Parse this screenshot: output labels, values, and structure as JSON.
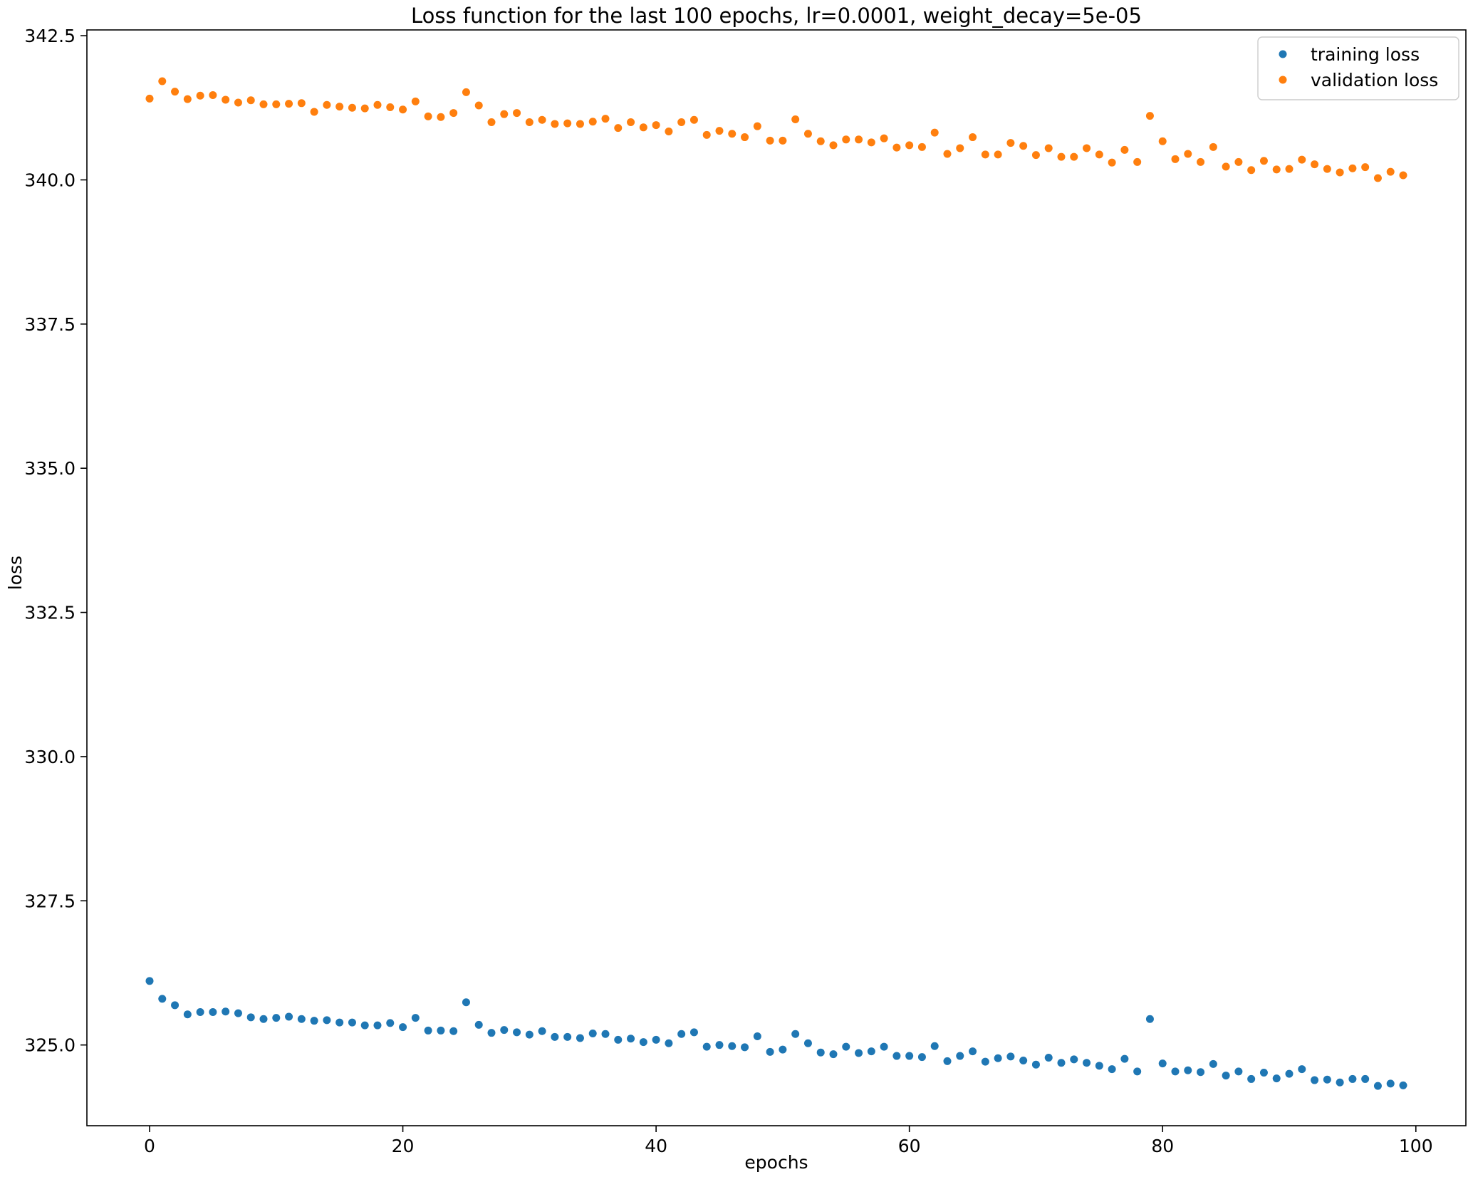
{
  "chart_data": {
    "type": "scatter",
    "title": "Loss function for the last 100 epochs, lr=0.0001, weight_decay=5e-05",
    "xlabel": "epochs",
    "ylabel": "loss",
    "xlim": [
      -4.95,
      103.95
    ],
    "ylim": [
      323.6,
      342.6
    ],
    "xticks": [
      0,
      20,
      40,
      60,
      80,
      100
    ],
    "xtick_labels": [
      "0",
      "20",
      "40",
      "60",
      "80",
      "100"
    ],
    "yticks": [
      325.0,
      327.5,
      330.0,
      332.5,
      335.0,
      337.5,
      340.0,
      342.5
    ],
    "ytick_labels": [
      "325.0",
      "327.5",
      "330.0",
      "332.5",
      "335.0",
      "337.5",
      "340.0",
      "342.5"
    ],
    "grid": false,
    "legend_position": "upper right",
    "x": [
      0,
      1,
      2,
      3,
      4,
      5,
      6,
      7,
      8,
      9,
      10,
      11,
      12,
      13,
      14,
      15,
      16,
      17,
      18,
      19,
      20,
      21,
      22,
      23,
      24,
      25,
      26,
      27,
      28,
      29,
      30,
      31,
      32,
      33,
      34,
      35,
      36,
      37,
      38,
      39,
      40,
      41,
      42,
      43,
      44,
      45,
      46,
      47,
      48,
      49,
      50,
      51,
      52,
      53,
      54,
      55,
      56,
      57,
      58,
      59,
      60,
      61,
      62,
      63,
      64,
      65,
      66,
      67,
      68,
      69,
      70,
      71,
      72,
      73,
      74,
      75,
      76,
      77,
      78,
      79,
      80,
      81,
      82,
      83,
      84,
      85,
      86,
      87,
      88,
      89,
      90,
      91,
      92,
      93,
      94,
      95,
      96,
      97,
      98,
      99
    ],
    "series": [
      {
        "name": "training loss",
        "color": "#1f77b4",
        "values": [
          326.11,
          325.8,
          325.69,
          325.53,
          325.57,
          325.57,
          325.58,
          325.55,
          325.48,
          325.45,
          325.47,
          325.49,
          325.45,
          325.42,
          325.43,
          325.39,
          325.39,
          325.34,
          325.34,
          325.38,
          325.31,
          325.47,
          325.25,
          325.25,
          325.24,
          325.74,
          325.35,
          325.21,
          325.26,
          325.22,
          325.18,
          325.24,
          325.14,
          325.14,
          325.12,
          325.2,
          325.19,
          325.09,
          325.11,
          325.05,
          325.09,
          325.03,
          325.19,
          325.22,
          324.97,
          325.0,
          324.98,
          324.96,
          325.15,
          324.88,
          324.92,
          325.19,
          325.03,
          324.87,
          324.84,
          324.97,
          324.86,
          324.89,
          324.97,
          324.81,
          324.81,
          324.79,
          324.98,
          324.72,
          324.81,
          324.89,
          324.71,
          324.77,
          324.8,
          324.73,
          324.66,
          324.78,
          324.69,
          324.75,
          324.69,
          324.64,
          324.58,
          324.76,
          324.54,
          325.45,
          324.68,
          324.54,
          324.56,
          324.53,
          324.67,
          324.47,
          324.54,
          324.41,
          324.52,
          324.42,
          324.5,
          324.58,
          324.39,
          324.4,
          324.35,
          324.41,
          324.41,
          324.29,
          324.33,
          324.3
        ]
      },
      {
        "name": "validation loss",
        "color": "#ff7f0e",
        "values": [
          341.41,
          341.71,
          341.53,
          341.4,
          341.46,
          341.47,
          341.39,
          341.34,
          341.38,
          341.31,
          341.31,
          341.32,
          341.33,
          341.18,
          341.3,
          341.27,
          341.25,
          341.24,
          341.3,
          341.26,
          341.22,
          341.36,
          341.1,
          341.09,
          341.16,
          341.52,
          341.29,
          341.0,
          341.14,
          341.16,
          341.0,
          341.04,
          340.97,
          340.98,
          340.97,
          341.01,
          341.06,
          340.9,
          341.0,
          340.91,
          340.95,
          340.84,
          341.0,
          341.04,
          340.78,
          340.85,
          340.8,
          340.74,
          340.93,
          340.68,
          340.68,
          341.05,
          340.8,
          340.67,
          340.6,
          340.7,
          340.7,
          340.65,
          340.72,
          340.56,
          340.6,
          340.57,
          340.82,
          340.45,
          340.55,
          340.74,
          340.44,
          340.44,
          340.64,
          340.59,
          340.43,
          340.55,
          340.4,
          340.4,
          340.55,
          340.44,
          340.3,
          340.52,
          340.31,
          341.11,
          340.67,
          340.36,
          340.45,
          340.31,
          340.57,
          340.23,
          340.31,
          340.17,
          340.33,
          340.18,
          340.19,
          340.35,
          340.27,
          340.19,
          340.13,
          340.2,
          340.22,
          340.03,
          340.14,
          340.08
        ]
      }
    ]
  }
}
